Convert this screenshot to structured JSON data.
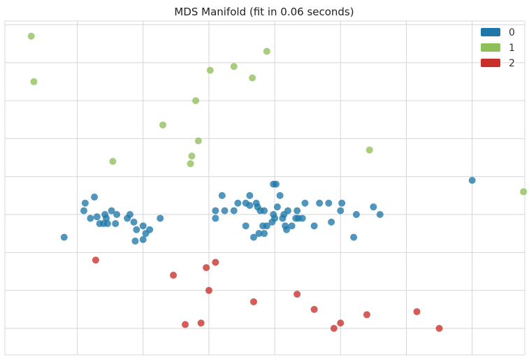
{
  "chart_data": {
    "type": "scatter",
    "title": "MDS Manifold (fit in 0.06 seconds)",
    "xlabel": "",
    "ylabel": "",
    "xlim": [
      -1.05,
      2.9
    ],
    "ylim": [
      -3.35,
      1.05
    ],
    "x_ticks": [
      -0.5,
      0,
      0.5,
      1,
      1.5,
      2,
      2.5
    ],
    "y_ticks": [
      -3,
      -2.5,
      -2,
      -1.5,
      -1,
      -0.5,
      0,
      0.5,
      1
    ],
    "show_x_tick_labels": false,
    "show_y_tick_labels": false,
    "grid": true,
    "legend_placement": "top-right",
    "series": [
      {
        "name": "0",
        "color": "#1f77a8",
        "points": [
          [
            0.0,
            -1.65
          ],
          [
            0.13,
            -1.55
          ],
          [
            0.02,
            -1.75
          ],
          [
            0.05,
            -1.7
          ],
          [
            0.6,
            -1.25
          ],
          [
            0.87,
            -1.4
          ],
          [
            0.89,
            -1.45
          ],
          [
            0.55,
            -1.45
          ],
          [
            0.62,
            -1.45
          ],
          [
            0.55,
            -1.55
          ],
          [
            0.69,
            -1.45
          ],
          [
            0.72,
            -1.35
          ],
          [
            0.78,
            -1.65
          ],
          [
            0.78,
            -1.35
          ],
          [
            0.81,
            -1.25
          ],
          [
            0.81,
            -1.38
          ],
          [
            0.86,
            -1.35
          ],
          [
            0.92,
            -1.45
          ],
          [
            0.99,
            -1.5
          ],
          [
            1.0,
            -1.55
          ],
          [
            1.02,
            -1.4
          ],
          [
            1.04,
            -1.25
          ],
          [
            1.06,
            -1.55
          ],
          [
            1.09,
            -1.7
          ],
          [
            1.1,
            -1.45
          ],
          [
            1.13,
            -1.65
          ],
          [
            1.16,
            -1.55
          ],
          [
            1.18,
            -1.55
          ],
          [
            1.21,
            -1.55
          ],
          [
            1.23,
            -1.35
          ],
          [
            1.3,
            -1.65
          ],
          [
            1.34,
            -1.35
          ],
          [
            1.41,
            -1.35
          ],
          [
            1.43,
            -1.6
          ],
          [
            1.51,
            -1.35
          ],
          [
            1.6,
            -1.8
          ],
          [
            1.5,
            -1.45
          ],
          [
            1.62,
            -1.5
          ],
          [
            1.08,
            -1.65
          ],
          [
            1.17,
            -1.45
          ],
          [
            0.91,
            -1.65
          ],
          [
            0.88,
            -1.75
          ],
          [
            0.92,
            -1.75
          ],
          [
            0.94,
            -1.65
          ],
          [
            0.98,
            -1.6
          ],
          [
            0.84,
            -1.8
          ],
          [
            0.99,
            -1.1
          ],
          [
            1.01,
            -1.1
          ],
          [
            -0.6,
            -1.8
          ],
          [
            -0.45,
            -1.45
          ],
          [
            -0.4,
            -1.55
          ],
          [
            -0.29,
            -1.5
          ],
          [
            -0.28,
            -1.55
          ],
          [
            -0.24,
            -1.45
          ],
          [
            -0.2,
            -1.5
          ],
          [
            -0.12,
            -1.55
          ],
          [
            -0.1,
            -1.5
          ],
          [
            -0.07,
            -1.6
          ],
          [
            -0.05,
            -1.7
          ],
          [
            -0.06,
            -1.85
          ],
          [
            -0.0,
            -1.83
          ],
          [
            -0.3,
            -1.62
          ],
          [
            -0.33,
            -1.62
          ],
          [
            -0.35,
            -1.53
          ],
          [
            -0.21,
            -1.62
          ],
          [
            -0.27,
            -1.62
          ],
          [
            -0.37,
            -1.27
          ],
          [
            -0.44,
            -1.35
          ],
          [
            2.5,
            -1.05
          ],
          [
            1.75,
            -1.4
          ],
          [
            1.8,
            -1.5
          ],
          [
            1.07,
            -1.5
          ]
        ]
      },
      {
        "name": "1",
        "color": "#8fbf5a",
        "points": [
          [
            -0.85,
            0.85
          ],
          [
            -0.83,
            0.25
          ],
          [
            -0.23,
            -0.8
          ],
          [
            0.15,
            -0.32
          ],
          [
            0.42,
            -0.53
          ],
          [
            0.36,
            -0.83
          ],
          [
            0.37,
            -0.73
          ],
          [
            0.4,
            0.0
          ],
          [
            0.51,
            0.4
          ],
          [
            0.69,
            0.45
          ],
          [
            0.83,
            0.3
          ],
          [
            0.94,
            0.65
          ],
          [
            1.72,
            -0.65
          ],
          [
            2.89,
            -1.2
          ]
        ]
      },
      {
        "name": "2",
        "color": "#c8302c",
        "points": [
          [
            -0.36,
            -2.1
          ],
          [
            0.23,
            -2.3
          ],
          [
            0.48,
            -2.2
          ],
          [
            0.55,
            -2.13
          ],
          [
            0.5,
            -2.5
          ],
          [
            0.84,
            -2.65
          ],
          [
            1.17,
            -2.55
          ],
          [
            1.5,
            -2.93
          ],
          [
            0.32,
            -2.95
          ],
          [
            0.44,
            -2.93
          ],
          [
            1.3,
            -2.75
          ],
          [
            2.08,
            -2.78
          ],
          [
            1.45,
            -3.0
          ],
          [
            1.7,
            -2.82
          ],
          [
            2.25,
            -3.0
          ]
        ]
      }
    ]
  }
}
